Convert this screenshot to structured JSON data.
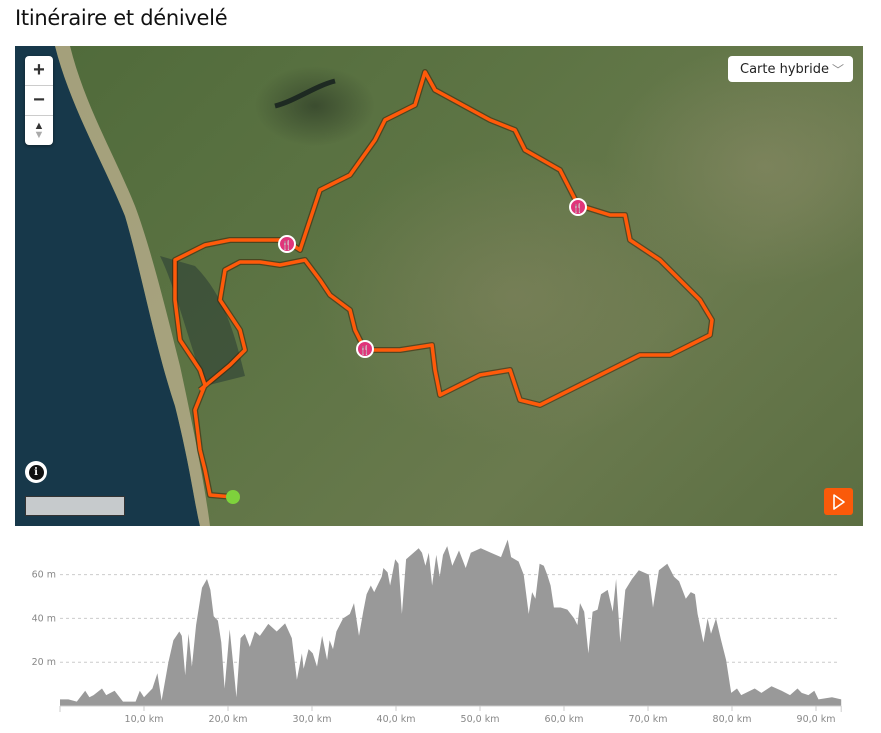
{
  "title": "Itinéraire et dénivelé",
  "map": {
    "zoom_in": "+",
    "zoom_out": "−",
    "compass": "▲",
    "layer_select": {
      "selected": "Carte hybride"
    },
    "route_color": "#ff5a0a",
    "start_marker_color": "#7ed23c",
    "poi_marker_color": "#e0357a",
    "poi_icons": [
      "restaurant-icon",
      "restaurant-icon",
      "restaurant-icon"
    ],
    "play_button_color": "#fa5a0a"
  },
  "chart_data": {
    "type": "area",
    "xlabel": "",
    "ylabel": "",
    "x_unit": "km",
    "y_unit": "m",
    "xlim": [
      0,
      93
    ],
    "ylim": [
      0,
      80
    ],
    "x_ticks": [
      "10,0 km",
      "20,0 km",
      "30,0 km",
      "40,0 km",
      "50,0 km",
      "60,0 km",
      "70,0 km",
      "80,0 km",
      "90,0 km"
    ],
    "x_tick_values": [
      10,
      20,
      30,
      40,
      50,
      60,
      70,
      80,
      90
    ],
    "y_ticks": [
      "20 m",
      "40 m",
      "60 m"
    ],
    "y_tick_values": [
      20,
      40,
      60
    ],
    "grid": "horizontal dashed",
    "fill_color": "#999999",
    "points": [
      [
        0,
        3
      ],
      [
        1,
        3
      ],
      [
        2,
        2
      ],
      [
        3,
        7
      ],
      [
        3.5,
        4
      ],
      [
        4,
        5
      ],
      [
        5,
        8
      ],
      [
        5.5,
        5
      ],
      [
        6.5,
        7
      ],
      [
        7.5,
        2
      ],
      [
        8,
        2
      ],
      [
        9,
        2
      ],
      [
        9.5,
        7
      ],
      [
        10,
        4
      ],
      [
        11,
        8
      ],
      [
        11.6,
        15
      ],
      [
        12.1,
        2.5
      ],
      [
        12.9,
        20
      ],
      [
        13.5,
        30
      ],
      [
        14.2,
        34
      ],
      [
        14.5,
        32
      ],
      [
        14.9,
        14
      ],
      [
        15.3,
        33
      ],
      [
        15.7,
        18
      ],
      [
        16.2,
        37
      ],
      [
        16.9,
        54
      ],
      [
        17.5,
        58
      ],
      [
        17.9,
        53
      ],
      [
        18.3,
        41
      ],
      [
        18.8,
        39
      ],
      [
        19.2,
        29
      ],
      [
        19.6,
        8
      ],
      [
        20.2,
        35
      ],
      [
        20.6,
        20
      ],
      [
        21.0,
        4
      ],
      [
        21.5,
        31
      ],
      [
        22.0,
        33
      ],
      [
        22.6,
        27
      ],
      [
        23.2,
        34
      ],
      [
        23.8,
        32
      ],
      [
        24.8,
        37.5
      ],
      [
        25.8,
        34
      ],
      [
        26.8,
        37.7
      ],
      [
        27.6,
        31
      ],
      [
        28.2,
        12
      ],
      [
        28.8,
        24
      ],
      [
        29.0,
        17
      ],
      [
        29.6,
        26
      ],
      [
        30.1,
        24
      ],
      [
        30.6,
        18
      ],
      [
        31.2,
        32
      ],
      [
        31.8,
        21
      ],
      [
        32.1,
        30
      ],
      [
        32.5,
        26
      ],
      [
        32.9,
        34
      ],
      [
        33.7,
        40
      ],
      [
        34.5,
        42
      ],
      [
        35.0,
        47
      ],
      [
        35.6,
        32
      ],
      [
        36.1,
        43
      ],
      [
        36.5,
        51
      ],
      [
        37.0,
        55
      ],
      [
        37.4,
        52
      ],
      [
        38.3,
        59
      ],
      [
        38.5,
        63
      ],
      [
        39.0,
        61
      ],
      [
        39.3,
        55
      ],
      [
        39.9,
        67
      ],
      [
        40.3,
        65
      ],
      [
        40.7,
        42
      ],
      [
        41.2,
        67
      ],
      [
        42.7,
        72
      ],
      [
        43.1,
        70
      ],
      [
        43.5,
        64
      ],
      [
        43.9,
        70
      ],
      [
        44.3,
        55
      ],
      [
        44.8,
        69
      ],
      [
        45.2,
        59
      ],
      [
        45.6,
        69
      ],
      [
        46.1,
        73
      ],
      [
        46.7,
        64
      ],
      [
        47.5,
        71
      ],
      [
        48.3,
        63
      ],
      [
        48.9,
        70
      ],
      [
        50.1,
        72
      ],
      [
        51.3,
        70
      ],
      [
        52.5,
        68
      ],
      [
        53.3,
        76
      ],
      [
        53.7,
        68
      ],
      [
        54.6,
        66
      ],
      [
        55.2,
        60
      ],
      [
        55.8,
        42
      ],
      [
        56.2,
        52
      ],
      [
        56.6,
        49
      ],
      [
        57.1,
        65
      ],
      [
        57.6,
        64
      ],
      [
        58.0,
        60
      ],
      [
        58.4,
        55
      ],
      [
        58.8,
        45
      ],
      [
        59.6,
        45
      ],
      [
        60.4,
        44
      ],
      [
        61.2,
        40
      ],
      [
        61.6,
        37
      ],
      [
        61.9,
        47
      ],
      [
        62.4,
        43
      ],
      [
        62.9,
        24
      ],
      [
        63.4,
        43
      ],
      [
        64.0,
        44
      ],
      [
        64.4,
        51
      ],
      [
        65.2,
        53
      ],
      [
        65.8,
        43
      ],
      [
        66.2,
        58
      ],
      [
        66.7,
        29
      ],
      [
        67.3,
        53
      ],
      [
        68.1,
        58
      ],
      [
        68.9,
        62
      ],
      [
        70.1,
        60
      ],
      [
        70.6,
        45
      ],
      [
        71.3,
        62
      ],
      [
        72.3,
        65
      ],
      [
        73.1,
        59
      ],
      [
        73.7,
        57
      ],
      [
        74.5,
        49
      ],
      [
        75.1,
        52
      ],
      [
        75.6,
        51
      ],
      [
        75.9,
        42
      ],
      [
        76.6,
        29
      ],
      [
        77.1,
        40
      ],
      [
        77.5,
        33
      ],
      [
        78.1,
        40
      ],
      [
        78.7,
        30
      ],
      [
        79.3,
        21
      ],
      [
        79.9,
        6
      ],
      [
        80.6,
        8
      ],
      [
        81.1,
        5
      ],
      [
        82.7,
        8
      ],
      [
        83.5,
        6
      ],
      [
        84.7,
        9
      ],
      [
        85.9,
        7
      ],
      [
        86.9,
        5
      ],
      [
        87.8,
        8
      ],
      [
        88.3,
        6
      ],
      [
        89.1,
        5
      ],
      [
        89.8,
        7
      ],
      [
        90.3,
        3
      ],
      [
        91.9,
        4
      ],
      [
        93.0,
        3
      ]
    ]
  }
}
